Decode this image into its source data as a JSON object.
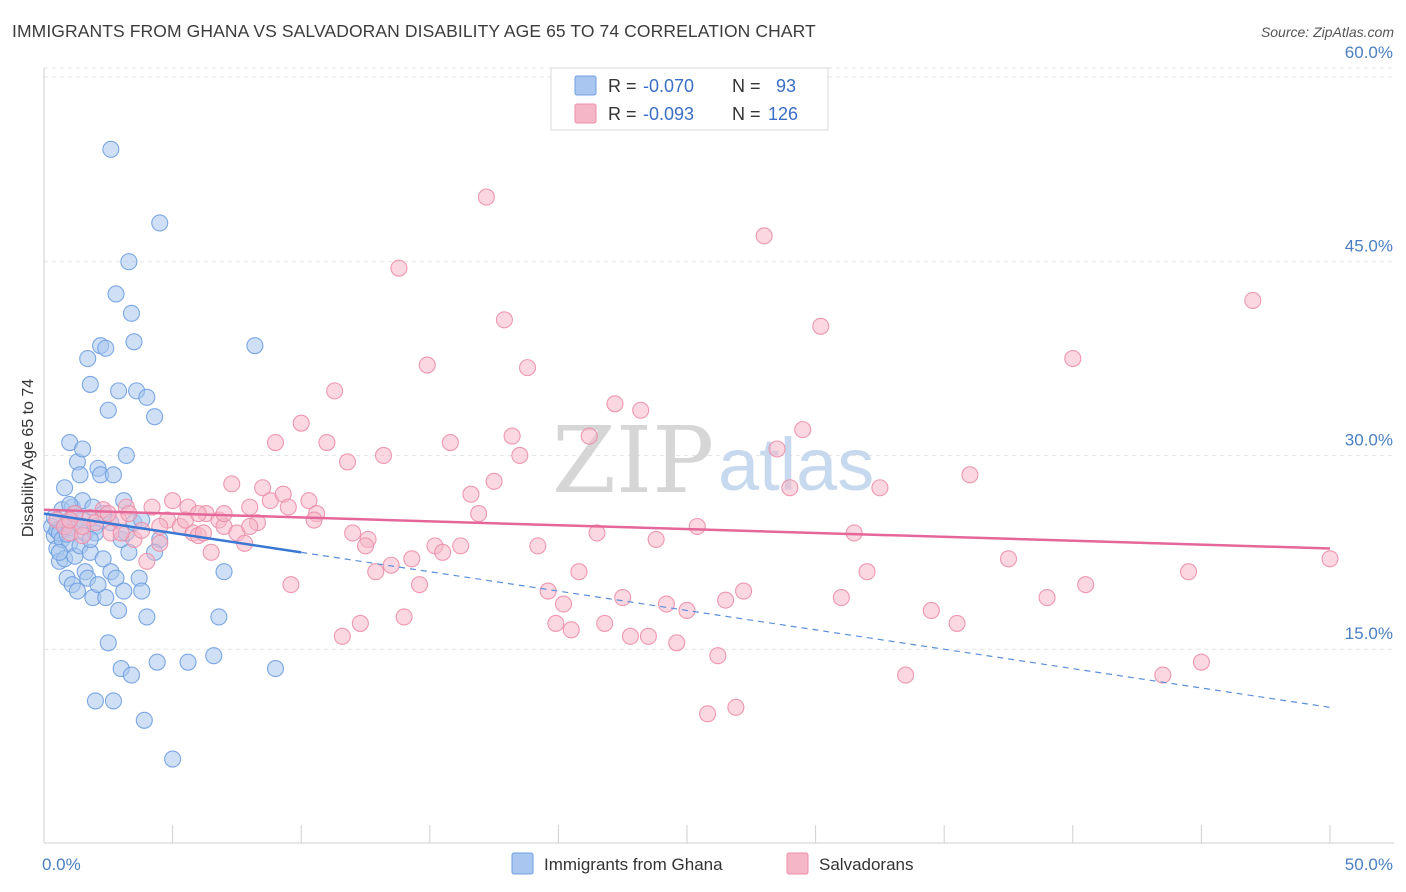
{
  "title": "IMMIGRANTS FROM GHANA VS SALVADORAN DISABILITY AGE 65 TO 74 CORRELATION CHART",
  "source": "Source: ZipAtlas.com",
  "watermark": {
    "part1": "ZIP",
    "part2": "atlas"
  },
  "legend": {
    "rows": [
      {
        "r_label": "R =",
        "r_value": "-0.070",
        "n_label": "N =",
        "n_value": "93",
        "color": "#a8c6ef"
      },
      {
        "r_label": "R =",
        "r_value": "-0.093",
        "n_label": "N =",
        "n_value": "126",
        "color": "#f5b6c8"
      }
    ]
  },
  "bottom_legend": [
    {
      "label": "Immigrants from Ghana",
      "color": "#a8c6ef"
    },
    {
      "label": "Salvadorans",
      "color": "#f5b6c8"
    }
  ],
  "chart_data": {
    "type": "scatter",
    "title": "IMMIGRANTS FROM GHANA VS SALVADORAN DISABILITY AGE 65 TO 74 CORRELATION CHART",
    "xlabel": "",
    "ylabel": "Disability Age 65 to 74",
    "xlim": [
      0,
      50
    ],
    "ylim": [
      0,
      61
    ],
    "x_tick_labels": [
      "0.0%",
      "50.0%"
    ],
    "y_ticks": [
      15,
      30,
      45,
      60
    ],
    "y_tick_labels": [
      "15.0%",
      "30.0%",
      "45.0%",
      "60.0%"
    ],
    "grid": true,
    "series": [
      {
        "name": "Immigrants from Ghana",
        "color": "#6f9fe0",
        "fill": "#a8c6ef",
        "trend": {
          "x0": 0,
          "y0": 25.5,
          "x1": 10,
          "y1": 22.5,
          "dash_to": 50,
          "dash_y": 10.5
        },
        "points": [
          [
            0.3,
            24.5
          ],
          [
            0.4,
            23.8
          ],
          [
            0.5,
            22.8
          ],
          [
            0.5,
            24.2
          ],
          [
            0.6,
            21.8
          ],
          [
            0.6,
            24.0
          ],
          [
            0.7,
            25.8
          ],
          [
            0.7,
            23.5
          ],
          [
            0.8,
            27.5
          ],
          [
            0.8,
            22.0
          ],
          [
            0.9,
            24.8
          ],
          [
            0.9,
            20.5
          ],
          [
            1.0,
            31.0
          ],
          [
            1.0,
            23.2
          ],
          [
            1.1,
            26.0
          ],
          [
            1.1,
            20.0
          ],
          [
            1.2,
            24.5
          ],
          [
            1.2,
            22.2
          ],
          [
            1.3,
            29.5
          ],
          [
            1.3,
            19.5
          ],
          [
            1.4,
            28.5
          ],
          [
            1.4,
            23.0
          ],
          [
            1.5,
            30.5
          ],
          [
            1.5,
            26.5
          ],
          [
            1.6,
            24.0
          ],
          [
            1.6,
            21.0
          ],
          [
            1.7,
            37.5
          ],
          [
            1.7,
            20.5
          ],
          [
            1.8,
            35.5
          ],
          [
            1.8,
            22.5
          ],
          [
            1.9,
            26.0
          ],
          [
            1.9,
            19.0
          ],
          [
            2.0,
            11.0
          ],
          [
            2.0,
            24.5
          ],
          [
            2.1,
            29.0
          ],
          [
            2.1,
            20.0
          ],
          [
            2.2,
            38.5
          ],
          [
            2.2,
            28.5
          ],
          [
            2.3,
            25.5
          ],
          [
            2.3,
            22.0
          ],
          [
            2.4,
            38.3
          ],
          [
            2.4,
            19.0
          ],
          [
            2.5,
            15.5
          ],
          [
            2.5,
            33.5
          ],
          [
            2.6,
            53.7
          ],
          [
            2.6,
            21.0
          ],
          [
            2.7,
            11.0
          ],
          [
            2.7,
            28.5
          ],
          [
            2.8,
            42.5
          ],
          [
            2.8,
            20.5
          ],
          [
            2.9,
            35.0
          ],
          [
            2.9,
            18.0
          ],
          [
            3.0,
            13.5
          ],
          [
            3.0,
            23.5
          ],
          [
            3.1,
            26.5
          ],
          [
            3.1,
            19.5
          ],
          [
            3.2,
            30.0
          ],
          [
            3.2,
            24.0
          ],
          [
            3.3,
            45.0
          ],
          [
            3.3,
            22.5
          ],
          [
            3.4,
            41.0
          ],
          [
            3.4,
            13.0
          ],
          [
            3.5,
            38.8
          ],
          [
            3.5,
            24.8
          ],
          [
            3.6,
            35.0
          ],
          [
            3.7,
            20.5
          ],
          [
            3.8,
            19.5
          ],
          [
            3.9,
            9.5
          ],
          [
            4.0,
            17.5
          ],
          [
            4.0,
            34.5
          ],
          [
            4.3,
            33.0
          ],
          [
            4.4,
            14.0
          ],
          [
            4.5,
            48.0
          ],
          [
            4.5,
            23.5
          ],
          [
            4.3,
            22.5
          ],
          [
            5.0,
            6.5
          ],
          [
            5.6,
            14.0
          ],
          [
            6.6,
            14.5
          ],
          [
            6.8,
            17.5
          ],
          [
            7.0,
            21.0
          ],
          [
            8.2,
            38.5
          ],
          [
            9.0,
            13.5
          ],
          [
            1.0,
            26.2
          ],
          [
            0.4,
            25.2
          ],
          [
            0.8,
            24.5
          ],
          [
            1.5,
            25.0
          ],
          [
            2.0,
            24.0
          ],
          [
            0.6,
            22.5
          ],
          [
            1.2,
            25.5
          ],
          [
            0.9,
            23.9
          ],
          [
            1.8,
            23.5
          ],
          [
            3.8,
            25.0
          ],
          [
            2.6,
            24.8
          ]
        ]
      },
      {
        "name": "Salvadorans",
        "color": "#ec8ea9",
        "fill": "#f5b6c8",
        "trend": {
          "x0": 0,
          "y0": 25.8,
          "x1": 50,
          "y1": 22.8
        },
        "points": [
          [
            0.5,
            25.0
          ],
          [
            0.8,
            24.5
          ],
          [
            1.0,
            24.0
          ],
          [
            1.2,
            25.5
          ],
          [
            1.5,
            23.8
          ],
          [
            1.8,
            25.2
          ],
          [
            2.0,
            24.8
          ],
          [
            2.3,
            25.8
          ],
          [
            2.6,
            24.0
          ],
          [
            2.9,
            25.0
          ],
          [
            3.2,
            26.0
          ],
          [
            3.5,
            23.5
          ],
          [
            3.8,
            24.2
          ],
          [
            4.0,
            21.8
          ],
          [
            4.2,
            26.0
          ],
          [
            4.5,
            23.2
          ],
          [
            4.8,
            25.0
          ],
          [
            5.0,
            26.5
          ],
          [
            5.3,
            24.5
          ],
          [
            5.6,
            26.0
          ],
          [
            5.8,
            24.0
          ],
          [
            6.0,
            23.8
          ],
          [
            6.3,
            25.5
          ],
          [
            6.5,
            22.5
          ],
          [
            6.8,
            25.0
          ],
          [
            7.0,
            24.5
          ],
          [
            7.3,
            27.8
          ],
          [
            7.5,
            24.0
          ],
          [
            7.8,
            23.2
          ],
          [
            8.0,
            26.0
          ],
          [
            8.3,
            24.8
          ],
          [
            8.5,
            27.5
          ],
          [
            8.8,
            26.5
          ],
          [
            9.0,
            31.0
          ],
          [
            9.3,
            27.0
          ],
          [
            9.6,
            20.0
          ],
          [
            10.0,
            32.5
          ],
          [
            10.3,
            26.5
          ],
          [
            10.6,
            25.5
          ],
          [
            11.0,
            31.0
          ],
          [
            11.3,
            35.0
          ],
          [
            11.6,
            16.0
          ],
          [
            11.8,
            29.5
          ],
          [
            12.0,
            24.0
          ],
          [
            12.3,
            17.0
          ],
          [
            12.6,
            23.5
          ],
          [
            12.9,
            21.0
          ],
          [
            13.2,
            30.0
          ],
          [
            13.5,
            21.5
          ],
          [
            13.8,
            44.5
          ],
          [
            14.0,
            17.5
          ],
          [
            14.3,
            22.0
          ],
          [
            14.6,
            20.0
          ],
          [
            14.9,
            37.0
          ],
          [
            15.2,
            23.0
          ],
          [
            15.5,
            22.5
          ],
          [
            15.8,
            31.0
          ],
          [
            16.2,
            23.0
          ],
          [
            16.6,
            27.0
          ],
          [
            16.9,
            25.5
          ],
          [
            17.2,
            50.0
          ],
          [
            17.5,
            28.0
          ],
          [
            17.9,
            40.5
          ],
          [
            18.2,
            31.5
          ],
          [
            18.5,
            30.0
          ],
          [
            18.8,
            36.8
          ],
          [
            19.2,
            23.0
          ],
          [
            19.6,
            19.5
          ],
          [
            19.9,
            17.0
          ],
          [
            20.2,
            18.5
          ],
          [
            20.5,
            16.5
          ],
          [
            20.8,
            21.0
          ],
          [
            21.2,
            31.5
          ],
          [
            21.5,
            24.0
          ],
          [
            21.8,
            17.0
          ],
          [
            22.2,
            34.0
          ],
          [
            22.5,
            19.0
          ],
          [
            22.8,
            16.0
          ],
          [
            23.2,
            33.5
          ],
          [
            23.5,
            16.0
          ],
          [
            23.8,
            23.5
          ],
          [
            24.2,
            18.5
          ],
          [
            24.6,
            15.5
          ],
          [
            25.0,
            18.0
          ],
          [
            25.4,
            24.5
          ],
          [
            25.8,
            10.0
          ],
          [
            26.2,
            14.5
          ],
          [
            26.5,
            18.8
          ],
          [
            26.9,
            10.5
          ],
          [
            27.2,
            19.5
          ],
          [
            28.0,
            47.0
          ],
          [
            28.5,
            30.5
          ],
          [
            29.0,
            27.5
          ],
          [
            29.5,
            32.0
          ],
          [
            30.2,
            40.0
          ],
          [
            31.0,
            19.0
          ],
          [
            31.5,
            24.0
          ],
          [
            32.0,
            21.0
          ],
          [
            32.5,
            27.5
          ],
          [
            33.5,
            13.0
          ],
          [
            34.5,
            18.0
          ],
          [
            35.5,
            17.0
          ],
          [
            36.0,
            28.5
          ],
          [
            37.5,
            22.0
          ],
          [
            39.0,
            19.0
          ],
          [
            40.0,
            37.5
          ],
          [
            40.5,
            20.0
          ],
          [
            43.5,
            13.0
          ],
          [
            44.5,
            21.0
          ],
          [
            45.0,
            14.0
          ],
          [
            47.0,
            42.0
          ],
          [
            50.0,
            22.0
          ],
          [
            1.5,
            24.5
          ],
          [
            2.5,
            25.5
          ],
          [
            3.0,
            24.0
          ],
          [
            4.5,
            24.5
          ],
          [
            5.5,
            25.0
          ],
          [
            6.2,
            24.0
          ],
          [
            7.0,
            25.5
          ],
          [
            8.0,
            24.5
          ],
          [
            9.5,
            26.0
          ],
          [
            10.5,
            25.0
          ],
          [
            12.5,
            23.0
          ],
          [
            6.0,
            25.5
          ],
          [
            3.3,
            25.5
          ],
          [
            1.0,
            25.0
          ]
        ]
      }
    ]
  }
}
